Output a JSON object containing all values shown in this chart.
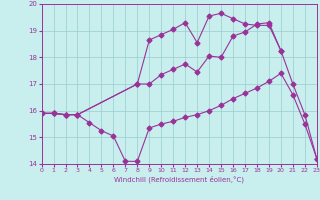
{
  "xlabel": "Windchill (Refroidissement éolien,°C)",
  "background_color": "#c8eeee",
  "line_color": "#993399",
  "grid_color": "#99cccc",
  "xlim": [
    0,
    23
  ],
  "ylim": [
    14,
    20
  ],
  "xticks": [
    0,
    1,
    2,
    3,
    4,
    5,
    6,
    7,
    8,
    9,
    10,
    11,
    12,
    13,
    14,
    15,
    16,
    17,
    18,
    19,
    20,
    21,
    22,
    23
  ],
  "yticks": [
    14,
    15,
    16,
    17,
    18,
    19,
    20
  ],
  "line1_x": [
    0,
    1,
    2,
    3,
    4,
    5,
    6,
    7,
    8,
    9,
    10,
    11,
    12,
    13,
    14,
    15,
    16,
    17,
    18,
    19,
    20,
    21,
    22,
    23
  ],
  "line1_y": [
    15.9,
    15.9,
    15.85,
    15.85,
    15.55,
    15.25,
    15.05,
    14.1,
    14.1,
    15.35,
    15.5,
    15.6,
    15.75,
    15.85,
    16.0,
    16.2,
    16.45,
    16.65,
    16.85,
    17.1,
    17.4,
    16.6,
    15.5,
    14.2
  ],
  "line2_x": [
    0,
    1,
    2,
    3,
    8,
    9,
    10,
    11,
    12,
    13,
    14,
    15,
    16,
    17,
    18,
    19,
    20,
    21,
    22,
    23
  ],
  "line2_y": [
    15.9,
    15.9,
    15.85,
    15.85,
    17.0,
    17.0,
    17.35,
    17.55,
    17.75,
    17.45,
    18.05,
    18.0,
    18.8,
    18.95,
    19.25,
    19.3,
    18.25,
    17.0,
    15.85,
    14.2
  ],
  "line3_x": [
    0,
    1,
    2,
    3,
    8,
    9,
    10,
    11,
    12,
    13,
    14,
    15,
    16,
    17,
    18,
    19,
    20
  ],
  "line3_y": [
    15.9,
    15.9,
    15.85,
    15.85,
    17.0,
    18.65,
    18.85,
    19.05,
    19.3,
    18.55,
    19.55,
    19.65,
    19.45,
    19.25,
    19.2,
    19.2,
    18.25
  ]
}
